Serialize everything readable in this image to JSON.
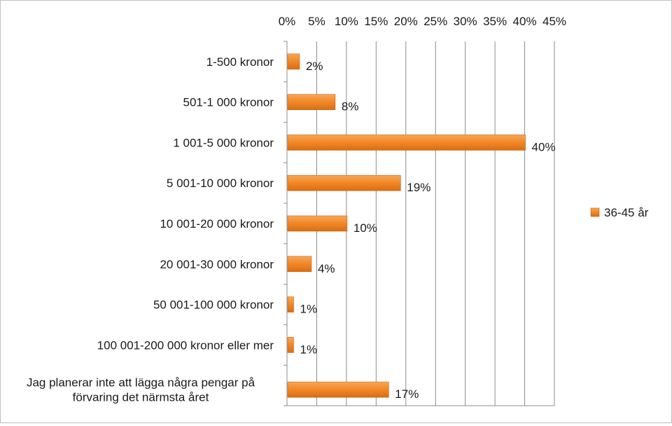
{
  "chart_data": {
    "type": "bar",
    "orientation": "horizontal",
    "title": "",
    "xlabel": "",
    "ylabel": "",
    "xlim": [
      0,
      45
    ],
    "x_tick_values": [
      0,
      5,
      10,
      15,
      20,
      25,
      30,
      35,
      40,
      45
    ],
    "x_tick_labels": [
      "0%",
      "5%",
      "10%",
      "15%",
      "20%",
      "25%",
      "30%",
      "35%",
      "40%",
      "45%"
    ],
    "x_axis_position": "top",
    "grid": true,
    "categories": [
      [
        "1-500 kronor"
      ],
      [
        "501-1 000 kronor"
      ],
      [
        "1 001-5 000 kronor"
      ],
      [
        "5 001-10 000 kronor"
      ],
      [
        "10 001-20 000 kronor"
      ],
      [
        "20 001-30 000 kronor"
      ],
      [
        "50 001-100 000 kronor"
      ],
      [
        "100 001-200 000 kronor eller mer"
      ],
      [
        "Jag planerar inte att lägga några pengar på",
        "förvaring det närmsta året"
      ]
    ],
    "series": [
      {
        "name": "36-45 år",
        "values": [
          2,
          8,
          40,
          19,
          10,
          4,
          1,
          1,
          17
        ],
        "data_labels": [
          "2%",
          "8%",
          "40%",
          "19%",
          "10%",
          "4%",
          "1%",
          "1%",
          "17%"
        ],
        "color": "#f28a2a"
      }
    ],
    "legend": {
      "position": "right",
      "entries": [
        "36-45 år"
      ]
    }
  }
}
